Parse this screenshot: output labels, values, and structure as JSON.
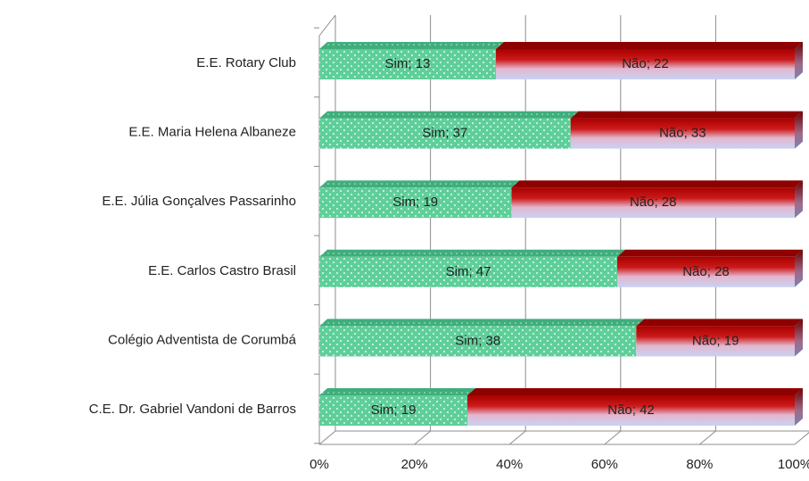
{
  "chart_data": {
    "type": "bar",
    "orientation": "horizontal",
    "stacking": "percent",
    "three_d": true,
    "grid": true,
    "categories": [
      "E.E. Rotary Club",
      "E.E. Maria Helena Albaneze",
      "E.E. Júlia Gonçalves Passarinho",
      "E.E. Carlos Castro Brasil",
      "Colégio Adventista de Corumbá",
      "C.E. Dr. Gabriel Vandoni de Barros"
    ],
    "series": [
      {
        "name": "Sim",
        "values": [
          13,
          37,
          19,
          47,
          38,
          19
        ],
        "labels": [
          "Sim; 13",
          "Sim; 37",
          "Sim; 19",
          "Sim; 47",
          "Sim; 38",
          "Sim; 19"
        ],
        "color": "#5fcf9a"
      },
      {
        "name": "Não",
        "values": [
          22,
          33,
          28,
          28,
          19,
          42
        ],
        "labels": [
          "Não; 22",
          "Não; 33",
          "Não; 28",
          "Não; 28",
          "Não; 19",
          "Não; 42"
        ],
        "color": "#c00000"
      }
    ],
    "x_ticks": [
      "0%",
      "20%",
      "40%",
      "60%",
      "80%",
      "100%"
    ],
    "xlim": [
      0,
      100
    ],
    "xlabel": "",
    "ylabel": ""
  }
}
